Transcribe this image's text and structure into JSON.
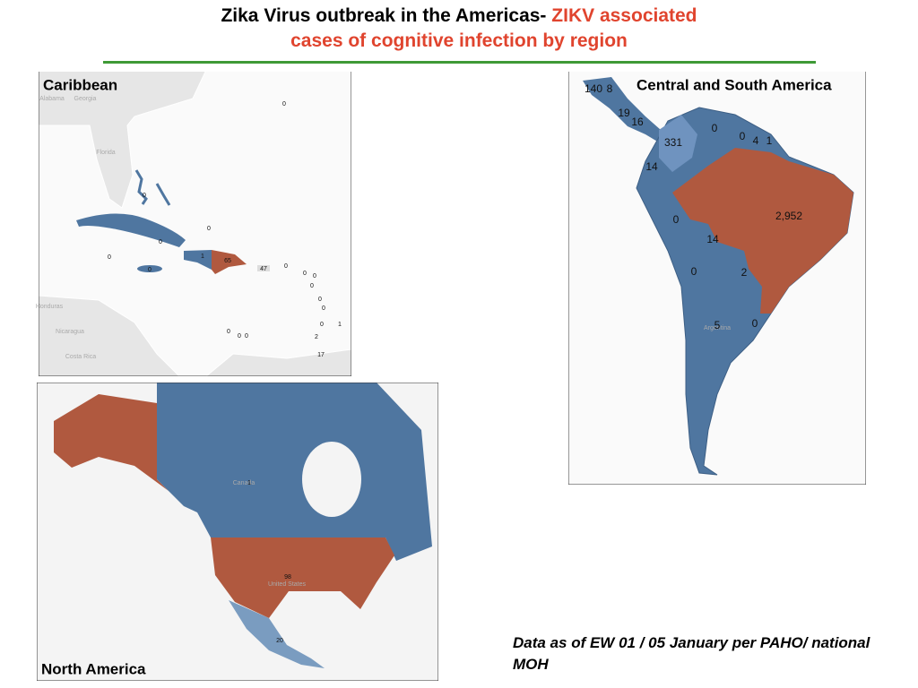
{
  "title": {
    "part1": "Zika Virus outbreak in the Americas-",
    "part2": "ZIKV associated",
    "part3": "cases of cognitive infection by region"
  },
  "caribbean": {
    "label": "Caribbean",
    "place_names": [
      "Alabama",
      "Georgia",
      "Florida",
      "Honduras",
      "Nicaragua",
      "Costa Rica"
    ],
    "counts": [
      0,
      0,
      0,
      0,
      0,
      1,
      65,
      0,
      47,
      0,
      0,
      0,
      0,
      0,
      0,
      0,
      1,
      0,
      0,
      0,
      2,
      17
    ]
  },
  "central_south_america": {
    "label": "Central and South America",
    "place_names": [
      "Argentina"
    ],
    "counts": [
      140,
      8,
      19,
      16,
      331,
      0,
      0,
      4,
      1,
      14,
      {
        "value": 2952,
        "label": "2,952"
      },
      0,
      14,
      0,
      2,
      5,
      0
    ]
  },
  "north_america": {
    "label": "North America",
    "place_names": [
      "Canada",
      "United States"
    ],
    "counts": [
      1,
      98,
      20
    ]
  },
  "note": "Data as of EW 01 / 05 January per PAHO/ national MOH"
}
